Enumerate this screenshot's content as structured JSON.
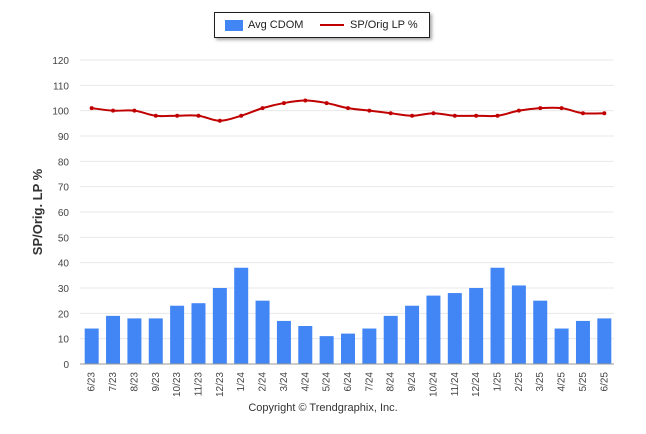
{
  "legend": {
    "bar_label": "Avg CDOM",
    "line_label": "SP/Orig LP %"
  },
  "copyright": "Copyright © Trendgraphix, Inc.",
  "colors": {
    "bar": "#4285f4",
    "line": "#c00000",
    "grid": "#e8e8e8",
    "axis_text": "#444444"
  },
  "chart_data": {
    "type": "bar",
    "categories": [
      "6/23",
      "7/23",
      "8/23",
      "9/23",
      "10/23",
      "11/23",
      "12/23",
      "1/24",
      "2/24",
      "3/24",
      "4/24",
      "5/24",
      "6/24",
      "7/24",
      "8/24",
      "9/24",
      "10/24",
      "11/24",
      "12/24",
      "1/25",
      "2/25",
      "3/25",
      "4/25",
      "5/25",
      "6/25"
    ],
    "series": [
      {
        "name": "Avg CDOM",
        "type": "bar",
        "values": [
          14,
          19,
          18,
          18,
          23,
          24,
          30,
          38,
          25,
          17,
          15,
          11,
          12,
          14,
          19,
          23,
          27,
          28,
          30,
          38,
          31,
          25,
          14,
          17,
          18
        ]
      },
      {
        "name": "SP/Orig LP %",
        "type": "line",
        "values": [
          101,
          100,
          100,
          98,
          98,
          98,
          96,
          98,
          101,
          103,
          104,
          103,
          101,
          100,
          99,
          98,
          99,
          98,
          98,
          98,
          100,
          101,
          101,
          99,
          99
        ]
      }
    ],
    "ylabel": "SP/Orig. LP %",
    "ylim": [
      0,
      120
    ],
    "yticks": [
      0,
      10,
      20,
      30,
      40,
      50,
      60,
      70,
      80,
      90,
      100,
      110,
      120
    ],
    "grid": true,
    "legend_position": "top-center"
  }
}
